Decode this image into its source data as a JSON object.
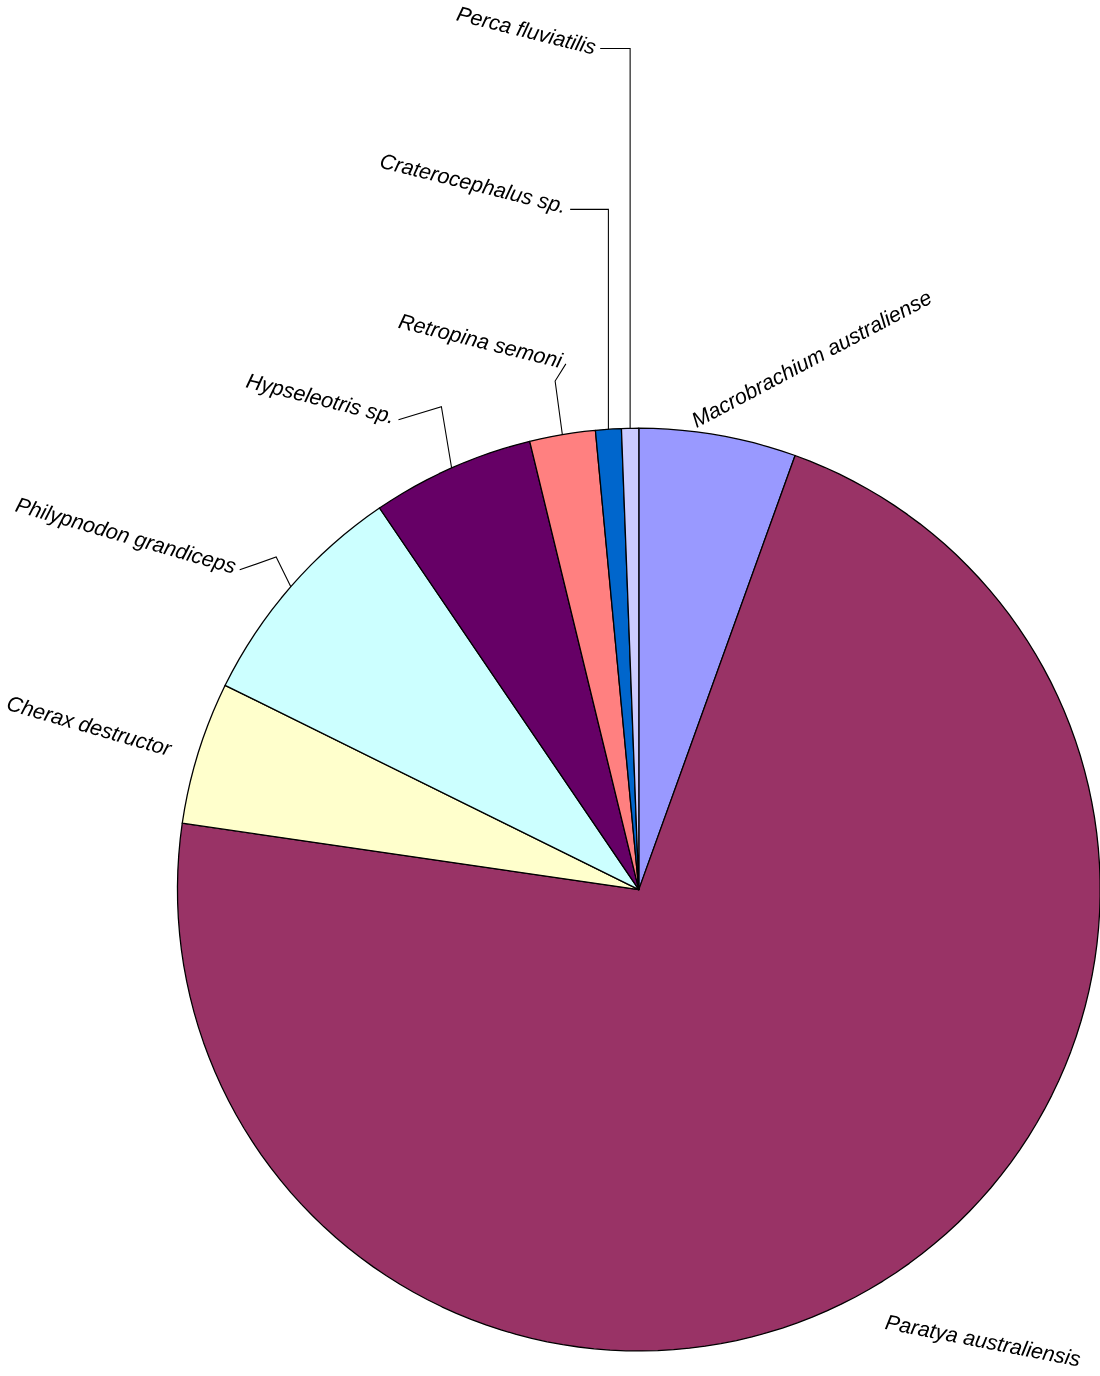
{
  "chart_data": {
    "type": "pie",
    "categories": [
      "Macrobrachium australiense",
      "Paratya australiensis",
      "Cherax destructor",
      "Philypnodon grandiceps",
      "Hypseleotris sp.",
      "Retropina semoni",
      "Craterocephalus sp.",
      "Perca fluviatilis"
    ],
    "values": [
      5.5,
      71.8,
      5.0,
      8.2,
      5.7,
      2.3,
      0.9,
      0.6
    ],
    "colors": [
      "#9999ff",
      "#993366",
      "#ffffcc",
      "#ccffff",
      "#660066",
      "#ff8080",
      "#0066cc",
      "#ccccff"
    ]
  }
}
